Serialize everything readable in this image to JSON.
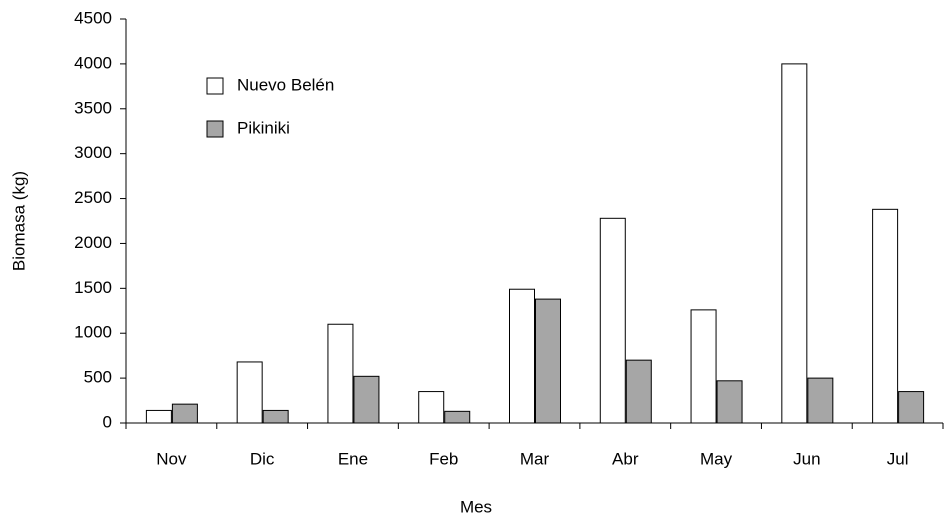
{
  "chart_data": {
    "type": "bar",
    "x_label": "Mes",
    "y_label": "Biomasa (kg)",
    "categories": [
      "Nov",
      "Dic",
      "Ene",
      "Feb",
      "Mar",
      "Abr",
      "May",
      "Jun",
      "Jul"
    ],
    "series": [
      {
        "name": "Nuevo Belén",
        "color": "#ffffff",
        "values": [
          140,
          680,
          1100,
          350,
          1490,
          2280,
          1260,
          4000,
          2380
        ]
      },
      {
        "name": "Pikiniki",
        "color": "#a6a6a6",
        "values": [
          210,
          140,
          520,
          130,
          1380,
          700,
          470,
          500,
          350
        ]
      }
    ],
    "ylim": [
      0,
      4500
    ],
    "yticks": [
      0,
      500,
      1000,
      1500,
      2000,
      2500,
      3000,
      3500,
      4000,
      4500
    ],
    "grid": false,
    "legend": "upper left"
  }
}
